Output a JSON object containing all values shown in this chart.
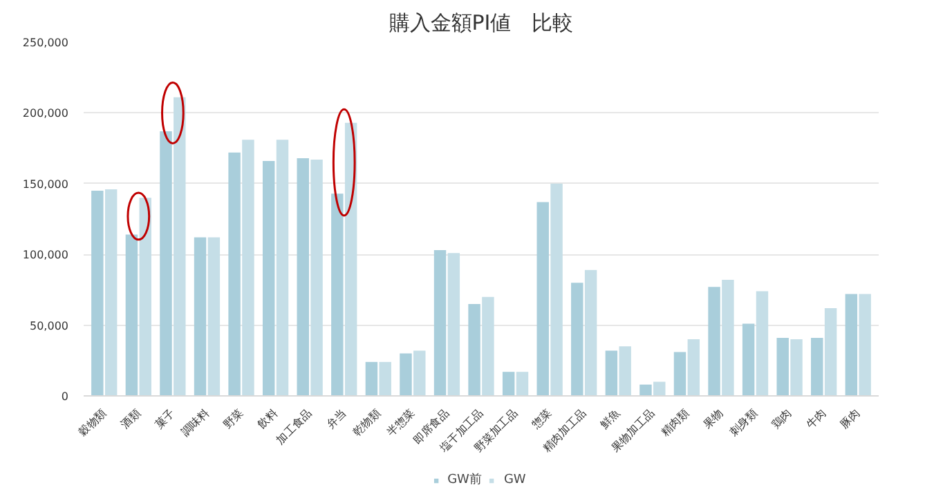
{
  "chart_data": {
    "type": "bar",
    "title": "購入金額PI値　比較",
    "categories": [
      "穀物類",
      "酒類",
      "菓子",
      "調味料",
      "野菜",
      "飲料",
      "加工食品",
      "弁当",
      "乾物類",
      "半惣菜",
      "即席食品",
      "塩干加工品",
      "野菜加工品",
      "惣菜",
      "精肉加工品",
      "鮮魚",
      "果物加工品",
      "精肉類",
      "果物",
      "刺身類",
      "鶏肉",
      "牛肉",
      "豚肉"
    ],
    "series": [
      {
        "name": "GW前",
        "color": "#a9cedb",
        "values": [
          145000,
          114000,
          187000,
          112000,
          172000,
          166000,
          168000,
          143000,
          24000,
          30000,
          103000,
          65000,
          17000,
          137000,
          80000,
          32000,
          8000,
          31000,
          77000,
          51000,
          41000,
          41000,
          72000
        ]
      },
      {
        "name": "GW",
        "color": "#c5dee7",
        "values": [
          146000,
          140000,
          211000,
          112000,
          181000,
          181000,
          167000,
          193000,
          24000,
          32000,
          101000,
          70000,
          17000,
          150000,
          89000,
          35000,
          10000,
          40000,
          82000,
          74000,
          40000,
          62000,
          72000
        ]
      }
    ],
    "ylim": [
      0,
      250000
    ],
    "yticks": [
      {
        "value": 0,
        "label": "0"
      },
      {
        "value": 50000,
        "label": "50,000"
      },
      {
        "value": 100000,
        "label": "100,000"
      },
      {
        "value": 150000,
        "label": "150,000"
      },
      {
        "value": 200000,
        "label": "200,000"
      },
      {
        "value": 250000,
        "label": "250,000"
      }
    ],
    "grid": "y",
    "legend": "bottom"
  }
}
